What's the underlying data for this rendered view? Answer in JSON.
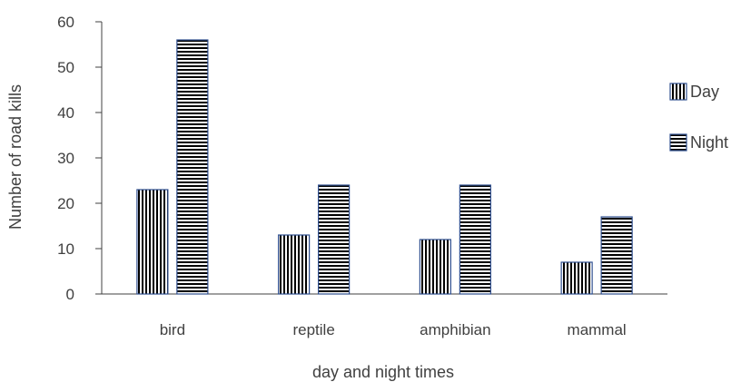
{
  "chart_data": {
    "type": "bar",
    "title": "",
    "xlabel": "day and night times",
    "ylabel": "Number of road kills",
    "categories": [
      "bird",
      "reptile",
      "amphibian",
      "mammal"
    ],
    "series": [
      {
        "name": "Day",
        "values": [
          23,
          13,
          12,
          7
        ],
        "pattern": "vertical-stripes"
      },
      {
        "name": "Night",
        "values": [
          56,
          24,
          24,
          17
        ],
        "pattern": "horizontal-stripes"
      }
    ],
    "ylim": [
      0,
      60
    ],
    "yticks": [
      "0",
      "10",
      "20",
      "30",
      "40",
      "50",
      "60"
    ],
    "grid": false,
    "legend_position": "right",
    "colors": {
      "stripe": "#000000",
      "bar_border": "#2f4f8f",
      "axis": "#404040"
    }
  }
}
